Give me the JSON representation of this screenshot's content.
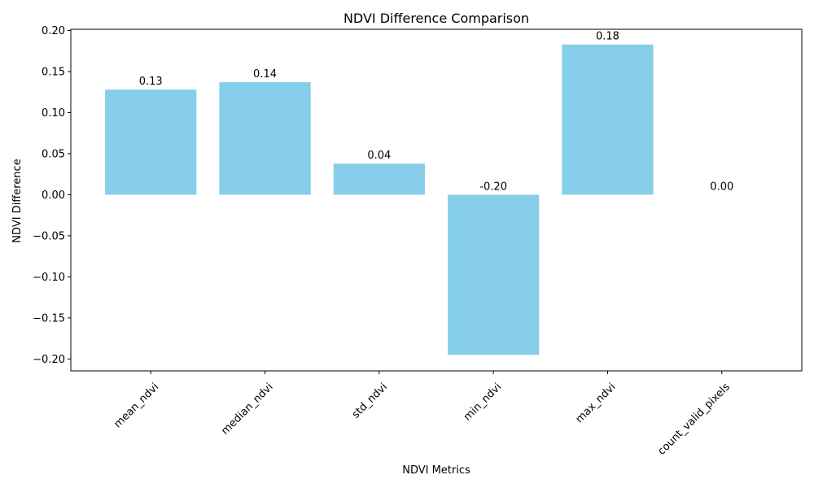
{
  "chart_data": {
    "type": "bar",
    "title": "NDVI Difference Comparison",
    "xlabel": "NDVI Metrics",
    "ylabel": "NDVI Difference",
    "categories": [
      "mean_ndvi",
      "median_ndvi",
      "std_ndvi",
      "min_ndvi",
      "max_ndvi",
      "count_valid_pixels"
    ],
    "values": [
      0.128,
      0.137,
      0.038,
      -0.195,
      0.183,
      0.0
    ],
    "data_labels": [
      "0.13",
      "0.14",
      "0.04",
      "-0.20",
      "0.18",
      "0.00"
    ],
    "yticks": [
      -0.2,
      -0.15,
      -0.1,
      -0.05,
      0.0,
      0.05,
      0.1,
      0.15,
      0.2
    ],
    "ytick_labels": [
      "−0.20",
      "−0.15",
      "−0.10",
      "−0.05",
      "0.00",
      "0.05",
      "0.10",
      "0.15",
      "0.20"
    ],
    "ylim": [
      -0.2145,
      0.2015
    ],
    "bar_color": "#87CEEB",
    "grid": false,
    "legend": "none"
  }
}
